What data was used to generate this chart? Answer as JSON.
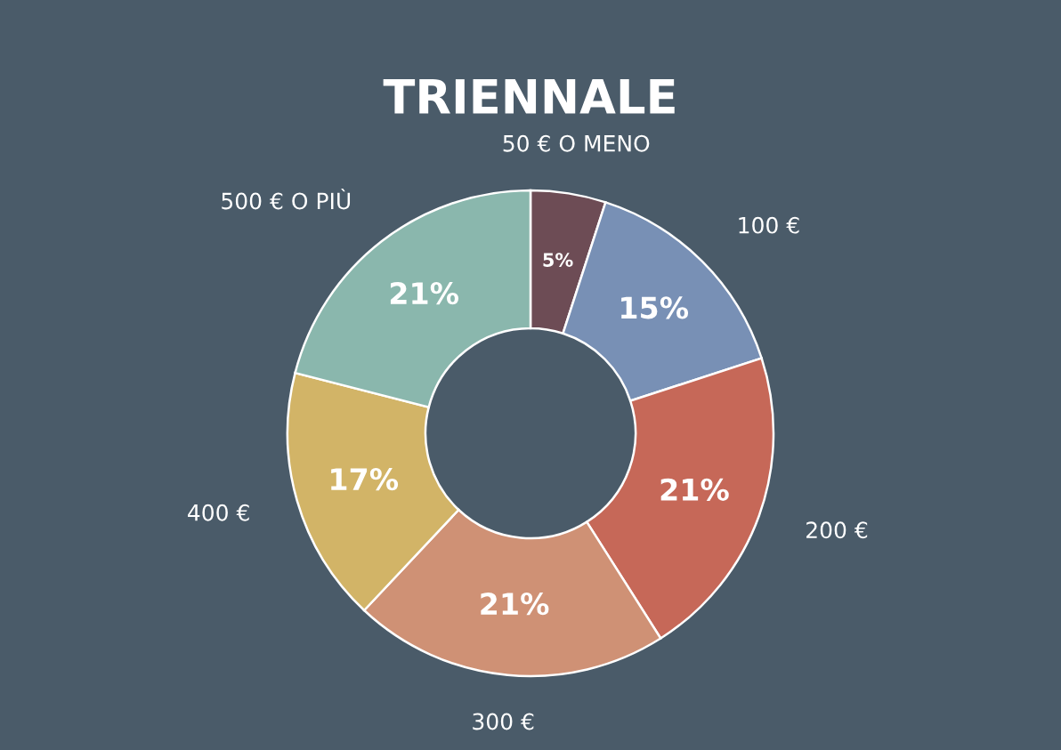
{
  "chart_data": {
    "type": "donut",
    "title": "TRIENNALE",
    "categories": [
      "50 € O MENO",
      "100 €",
      "200 €",
      "300 €",
      "400 €",
      "500 € O PIÙ"
    ],
    "values": [
      5,
      15,
      21,
      21,
      17,
      21
    ],
    "colors": [
      "#6d4c55",
      "#7890b5",
      "#c66858",
      "#cf9175",
      "#d2b467",
      "#8ab7ad"
    ],
    "value_labels": [
      "5%",
      "15%",
      "21%",
      "21%",
      "17%",
      "21%"
    ]
  }
}
